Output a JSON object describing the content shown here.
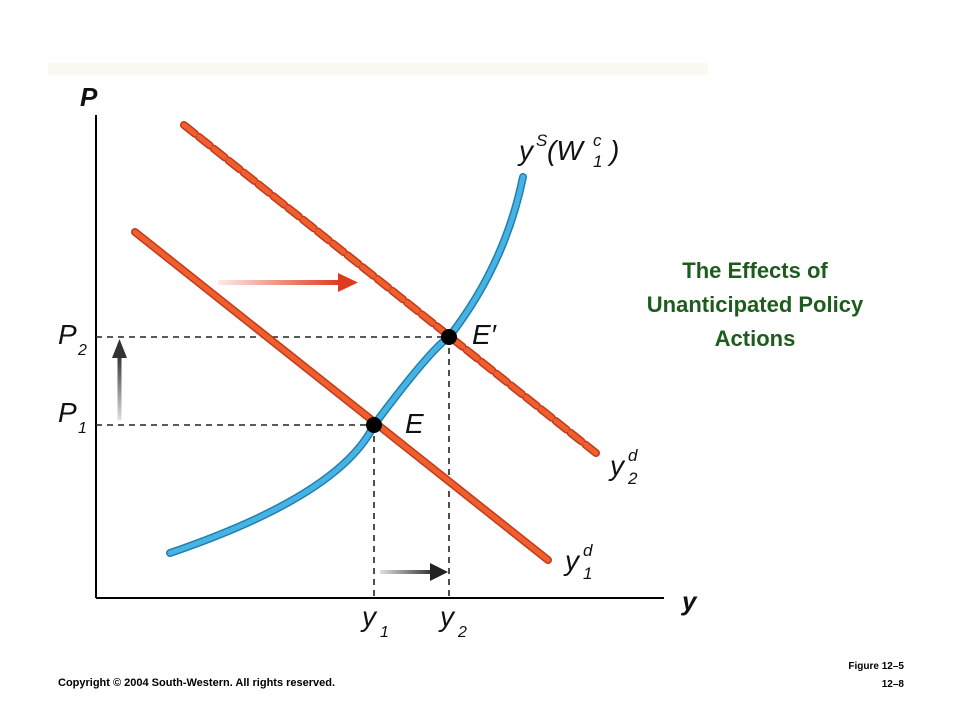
{
  "title": {
    "line1": "The Effects of",
    "line2": "Unanticipated Policy",
    "line3": "Actions"
  },
  "footer": {
    "copyright": "Copyright © 2004 South-Western. All rights reserved.",
    "figure": "Figure 12–5",
    "page": "12–8"
  },
  "axes": {
    "y_axis": "P",
    "x_axis": "y"
  },
  "labels": {
    "p2": {
      "main": "P",
      "sub": "2"
    },
    "p1": {
      "main": "P",
      "sub": "1"
    },
    "y1": {
      "main": "y",
      "sub": "1"
    },
    "y2": {
      "main": "y",
      "sub": "2"
    },
    "e_prime": "E′",
    "e": "E",
    "supply": {
      "main": "y",
      "sup": "S",
      "open": " (W",
      "sup2": "c",
      "sub2": "1",
      "close": ")"
    },
    "demand1": {
      "main": "y",
      "sup": "d",
      "sub": "1"
    },
    "demand2": {
      "main": "y",
      "sup": "d",
      "sub": "2"
    }
  },
  "colors": {
    "supply": "#3aa3d6",
    "demand": "#e8562a",
    "arrow_red": "#e03a1e",
    "title": "#1e5c1e"
  }
}
